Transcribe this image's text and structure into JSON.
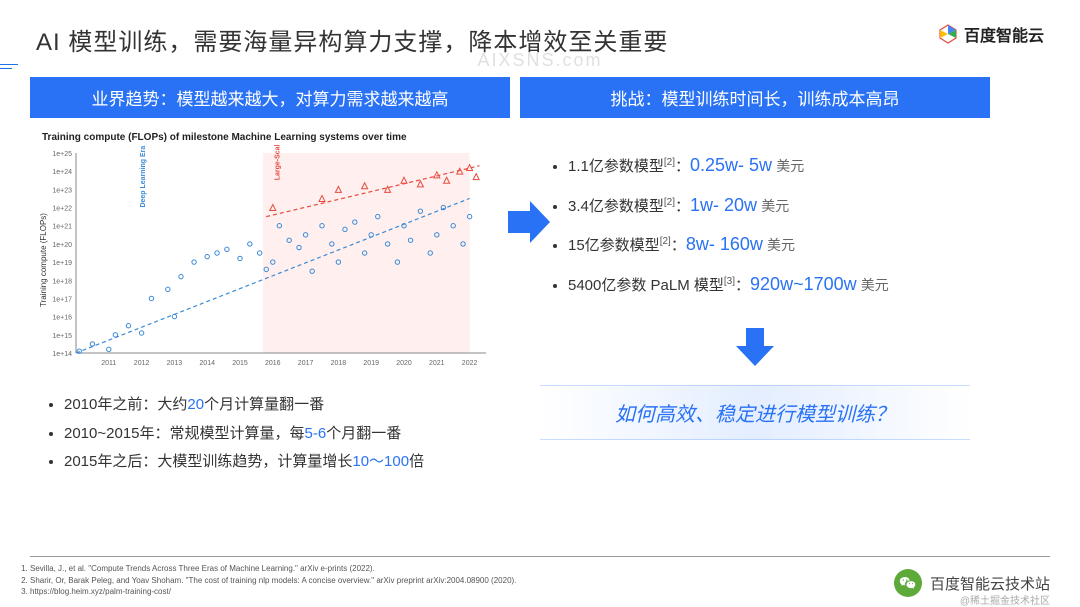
{
  "header": {
    "title": "AI 模型训练，需要海量异构算力支撑，降本增效至关重要",
    "logo_text": "百度智能云",
    "watermark": "AIXSNS.com"
  },
  "left_panel": {
    "header": "业界趋势：模型越来越大，对算力需求越来越高",
    "chart": {
      "title": "Training compute (FLOPs) of milestone Machine Learning systems over time",
      "type": "scatter-log",
      "x_label_years": [
        2011,
        2012,
        2013,
        2014,
        2015,
        2016,
        2017,
        2018,
        2019,
        2020,
        2021,
        2022
      ],
      "y_ticks_exp": [
        14,
        15,
        16,
        17,
        18,
        19,
        20,
        21,
        22,
        23,
        24,
        25
      ],
      "y_axis_label": "Training compute (FLOPs)",
      "era_labels": [
        "Deep Learning Era",
        "Large-Scale Era"
      ],
      "shade_band": {
        "from_year": 2015.7,
        "to_year": 2022,
        "color": "#ffe4e4"
      },
      "series": [
        {
          "name": "regular",
          "color": "#3a8ad6",
          "marker": "circle",
          "points": [
            [
              2010.1,
              14.1
            ],
            [
              2010.5,
              14.5
            ],
            [
              2011.0,
              14.2
            ],
            [
              2011.2,
              15.0
            ],
            [
              2011.6,
              15.5
            ],
            [
              2012.0,
              15.1
            ],
            [
              2012.3,
              17.0
            ],
            [
              2012.8,
              17.5
            ],
            [
              2013.0,
              16.0
            ],
            [
              2013.2,
              18.2
            ],
            [
              2013.6,
              19.0
            ],
            [
              2014.0,
              19.3
            ],
            [
              2014.3,
              19.5
            ],
            [
              2014.6,
              19.7
            ],
            [
              2015.0,
              19.2
            ],
            [
              2015.3,
              20.0
            ],
            [
              2015.6,
              19.5
            ],
            [
              2015.8,
              18.6
            ],
            [
              2016.0,
              19.0
            ],
            [
              2016.2,
              21.0
            ],
            [
              2016.5,
              20.2
            ],
            [
              2016.8,
              19.8
            ],
            [
              2017.0,
              20.5
            ],
            [
              2017.2,
              18.5
            ],
            [
              2017.5,
              21.0
            ],
            [
              2017.8,
              20.0
            ],
            [
              2018.0,
              19.0
            ],
            [
              2018.2,
              20.8
            ],
            [
              2018.5,
              21.2
            ],
            [
              2018.8,
              19.5
            ],
            [
              2019.0,
              20.5
            ],
            [
              2019.2,
              21.5
            ],
            [
              2019.5,
              20.0
            ],
            [
              2019.8,
              19.0
            ],
            [
              2020.0,
              21.0
            ],
            [
              2020.2,
              20.2
            ],
            [
              2020.5,
              21.8
            ],
            [
              2020.8,
              19.5
            ],
            [
              2021.0,
              20.5
            ],
            [
              2021.2,
              22.0
            ],
            [
              2021.5,
              21.0
            ],
            [
              2021.8,
              20.0
            ],
            [
              2022.0,
              21.5
            ]
          ]
        },
        {
          "name": "large-scale",
          "color": "#e74c3c",
          "marker": "triangle",
          "points": [
            [
              2016.0,
              22.0
            ],
            [
              2017.5,
              22.5
            ],
            [
              2018.0,
              23.0
            ],
            [
              2018.8,
              23.2
            ],
            [
              2019.5,
              23.0
            ],
            [
              2020.0,
              23.5
            ],
            [
              2020.5,
              23.3
            ],
            [
              2021.0,
              23.8
            ],
            [
              2021.3,
              23.5
            ],
            [
              2021.7,
              24.0
            ],
            [
              2022.0,
              24.2
            ],
            [
              2022.2,
              23.7
            ]
          ]
        }
      ],
      "trend_lines": [
        {
          "color": "#3a8ad6",
          "from": [
            2010,
            14.0
          ],
          "to": [
            2022,
            22.5
          ],
          "dash": "4,3"
        },
        {
          "color": "#e74c3c",
          "from": [
            2015.8,
            21.5
          ],
          "to": [
            2022.3,
            24.3
          ],
          "dash": "4,3"
        }
      ],
      "axis_color": "#888",
      "grid_color": "#eee",
      "tick_fontsize": 7
    },
    "bullets": [
      {
        "pre": "2010年之前：大约",
        "hl": "20",
        "post": "个月计算量翻一番"
      },
      {
        "pre": "2010~2015年：常规模型计算量，每",
        "hl": "5-6",
        "post": "个月翻一番"
      },
      {
        "pre": "2015年之后：大模型训练趋势，计算量增长",
        "hl": "10～100",
        "post": "倍"
      }
    ]
  },
  "right_panel": {
    "header": "挑战：模型训练时间长，训练成本高昂",
    "costs": [
      {
        "params": "1.1亿参数模型",
        "ref": "[2]",
        "range": "0.25w- 5w",
        "unit": "美元"
      },
      {
        "params": "3.4亿参数模型",
        "ref": "[2]",
        "range": "1w- 20w",
        "unit": "美元"
      },
      {
        "params": "15亿参数模型",
        "ref": "[2]",
        "range": "8w- 160w",
        "unit": "美元"
      },
      {
        "params": "5400亿参数 PaLM 模型",
        "ref": "[3]",
        "range": "920w~1700w",
        "unit": "美元"
      }
    ],
    "question": "如何高效、稳定进行模型训练？"
  },
  "footer": {
    "refs": [
      "Sevilla, J., et al. \"Compute Trends Across Three Eras of Machine Learning.\" arXiv e-prints (2022).",
      "Sharir, Or, Barak Peleg, and Yoav Shoham. \"The cost of training nlp models: A concise overview.\" arXiv preprint arXiv:2004.08900 (2020).",
      "https://blog.heim.xyz/palm-training-cost/"
    ],
    "brand": "百度智能云技术站",
    "sub": "@稀土掘金技术社区"
  },
  "colors": {
    "primary_blue": "#2972f5",
    "logo_colors": [
      "#e74c3c",
      "#4285f4",
      "#fbbc05",
      "#34a853"
    ]
  }
}
